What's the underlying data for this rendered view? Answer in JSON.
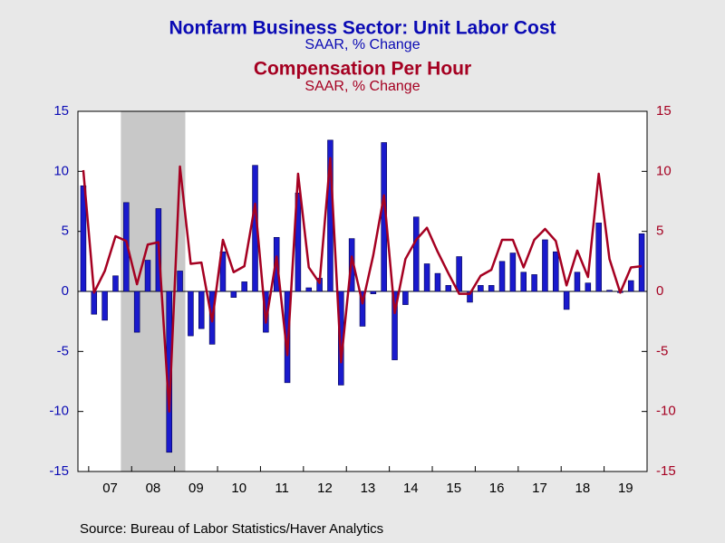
{
  "chart_data": {
    "type": "bar-line",
    "title": "Nonfarm Business Sector: Unit Labor Cost",
    "subtitle": "SAAR, % Change",
    "title2": "Compensation Per Hour",
    "subtitle2": "SAAR, % Change",
    "source": "Source:  Bureau of Labor Statistics/Haver Analytics",
    "categories": [
      null,
      "07",
      null,
      null,
      null,
      "08",
      null,
      null,
      null,
      "09",
      null,
      null,
      null,
      "10",
      null,
      null,
      null,
      "11",
      null,
      null,
      null,
      "12",
      null,
      null,
      null,
      "13",
      null,
      null,
      null,
      "14",
      null,
      null,
      null,
      "15",
      null,
      null,
      null,
      "16",
      null,
      null,
      null,
      "17",
      null,
      null,
      null,
      "18",
      null,
      null,
      null,
      "19",
      null,
      null,
      null
    ],
    "shaded_range": [
      4,
      9
    ],
    "series": [
      {
        "name": "Nonfarm Business Sector: Unit Labor Cost",
        "type": "bar",
        "color": "#1a1acc",
        "values": [
          8.8,
          -1.9,
          -2.4,
          1.3,
          7.4,
          -3.4,
          2.6,
          6.9,
          -13.4,
          1.7,
          -3.7,
          -3.1,
          -4.4,
          3.3,
          -0.5,
          0.8,
          10.5,
          -3.4,
          4.5,
          -7.6,
          8.2,
          0.3,
          1.1,
          12.6,
          -7.8,
          4.4,
          -2.9,
          -0.2,
          12.4,
          -5.7,
          -1.1,
          6.2,
          2.3,
          1.5,
          0.5,
          2.9,
          -0.9,
          0.5,
          0.5,
          2.5,
          3.2,
          1.6,
          1.4,
          4.3,
          3.3,
          -1.5,
          1.6,
          0.7,
          5.7,
          0.1,
          -0.1,
          0.9,
          4.8
        ]
      },
      {
        "name": "Compensation Per Hour",
        "type": "line",
        "color": "#a50021",
        "axis": "y2",
        "values": [
          10.1,
          -0.1,
          1.7,
          4.6,
          4.2,
          0.6,
          3.9,
          4.1,
          -10,
          10.4,
          2.3,
          2.4,
          -2.5,
          4.3,
          1.6,
          2.1,
          7.3,
          -2.6,
          2.9,
          -5.3,
          9.8,
          2.0,
          0.7,
          11.1,
          -5.9,
          2.9,
          -1.0,
          3.0,
          8.0,
          -1.8,
          2.7,
          4.3,
          5.3,
          3.3,
          1.5,
          -0.2,
          -0.2,
          1.3,
          1.8,
          4.3,
          4.3,
          2.0,
          4.3,
          5.2,
          4.2,
          0.5,
          3.4,
          1.2,
          9.8,
          2.7,
          -0.1,
          2.0,
          2.1
        ]
      }
    ],
    "ylim": [
      -15,
      15
    ],
    "yticks": [
      -15,
      -10,
      -5,
      0,
      5,
      10,
      15
    ],
    "y2lim": [
      -15,
      15
    ],
    "y2ticks": [
      -15,
      -10,
      -5,
      0,
      5,
      10,
      15
    ]
  }
}
